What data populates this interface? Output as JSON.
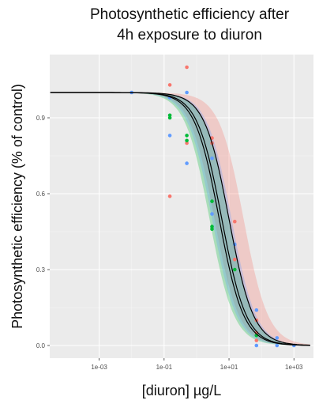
{
  "chart_data": {
    "type": "scatter",
    "title_lines": [
      "Photosynthetic efficiency after",
      "4h exposure to diuron"
    ],
    "xlabel": "[diuron] µg/L",
    "ylabel": "Photosynthetic efficiency (% of control)",
    "x_scale": "log10",
    "xlim": [
      3e-05,
      4000
    ],
    "ylim": [
      -0.05,
      1.15
    ],
    "x_ticks": [
      {
        "value": 0.001,
        "label": "1e-03"
      },
      {
        "value": 0.1,
        "label": "1e-01"
      },
      {
        "value": 10,
        "label": "1e+01"
      },
      {
        "value": 1000,
        "label": "1e+03"
      }
    ],
    "y_ticks": [
      {
        "value": 0.0,
        "label": "0.0"
      },
      {
        "value": 0.3,
        "label": "0.3"
      },
      {
        "value": 0.6,
        "label": "0.6"
      },
      {
        "value": 0.9,
        "label": "0.9"
      }
    ],
    "grid": true,
    "legend": "none",
    "series": [
      {
        "color": "#f8766d",
        "points": [
          [
            0.15,
            1.03
          ],
          [
            0.15,
            0.59
          ],
          [
            0.5,
            1.1
          ],
          [
            0.5,
            0.8
          ],
          [
            3,
            0.82
          ],
          [
            3,
            0.8
          ],
          [
            15,
            0.49
          ],
          [
            15,
            0.34
          ],
          [
            70,
            0.1
          ],
          [
            70,
            0.05
          ],
          [
            70,
            0.02
          ]
        ],
        "curve": {
          "ec50": 10,
          "slope": 1.15
        },
        "band_halfwidth_log10": 0.45
      },
      {
        "color": "#00ba38",
        "points": [
          [
            0.15,
            0.91
          ],
          [
            0.15,
            0.9
          ],
          [
            0.5,
            0.83
          ],
          [
            0.5,
            0.81
          ],
          [
            3,
            0.57
          ],
          [
            3,
            0.47
          ],
          [
            3,
            0.46
          ],
          [
            15,
            0.3
          ],
          [
            70,
            0.04
          ]
        ],
        "curve": {
          "ec50": 5,
          "slope": 1.15
        },
        "band_halfwidth_log10": 0.3
      },
      {
        "color": "#619cff",
        "points": [
          [
            0.01,
            1.0
          ],
          [
            0.15,
            0.98
          ],
          [
            0.15,
            0.83
          ],
          [
            0.5,
            1.0
          ],
          [
            0.5,
            0.72
          ],
          [
            3,
            0.74
          ],
          [
            3,
            0.52
          ],
          [
            15,
            0.4
          ],
          [
            70,
            0.14
          ],
          [
            70,
            0.0
          ],
          [
            300,
            0.03
          ],
          [
            300,
            0.0
          ],
          [
            1000,
            0.0
          ]
        ],
        "curve": {
          "ec50": 6,
          "slope": 1.15
        },
        "band_halfwidth_log10": 0.3
      }
    ]
  }
}
